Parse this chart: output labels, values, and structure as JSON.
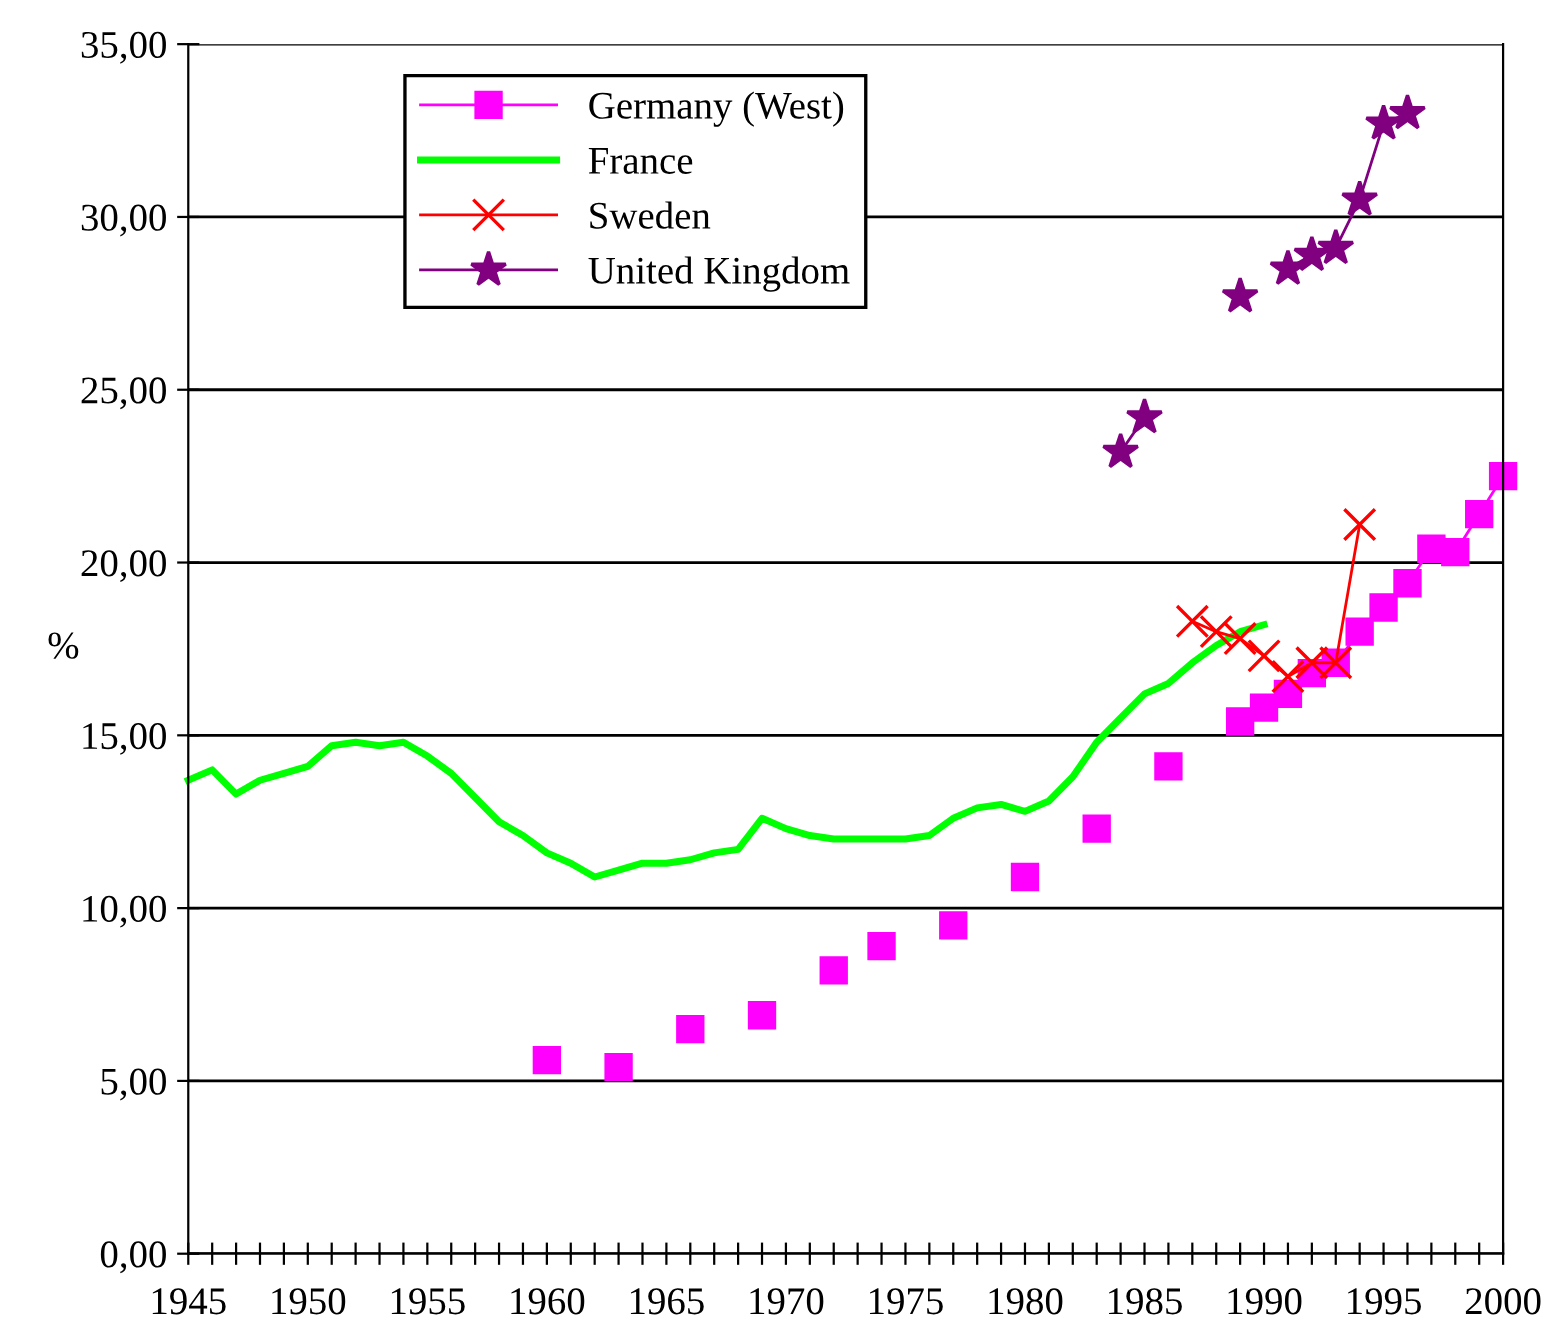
{
  "chart_data": {
    "type": "line",
    "ylabel": "%",
    "xlim": [
      1945,
      2000
    ],
    "ylim": [
      0,
      35
    ],
    "xticks": [
      1945,
      {
        "value": 1946,
        "label": null
      },
      {
        "value": 1947,
        "label": null
      },
      {
        "value": 1948,
        "label": null
      },
      {
        "value": 1949,
        "label": null
      },
      1950,
      {
        "value": 1951,
        "label": null
      },
      {
        "value": 1952,
        "label": null
      },
      {
        "value": 1953,
        "label": null
      },
      {
        "value": 1954,
        "label": null
      },
      1955,
      {
        "value": 1956,
        "label": null
      },
      {
        "value": 1957,
        "label": null
      },
      {
        "value": 1958,
        "label": null
      },
      {
        "value": 1959,
        "label": null
      },
      1960,
      {
        "value": 1961,
        "label": null
      },
      {
        "value": 1962,
        "label": null
      },
      {
        "value": 1963,
        "label": null
      },
      {
        "value": 1964,
        "label": null
      },
      1965,
      {
        "value": 1966,
        "label": null
      },
      {
        "value": 1967,
        "label": null
      },
      {
        "value": 1968,
        "label": null
      },
      {
        "value": 1969,
        "label": null
      },
      1970,
      {
        "value": 1971,
        "label": null
      },
      {
        "value": 1972,
        "label": null
      },
      {
        "value": 1973,
        "label": null
      },
      {
        "value": 1974,
        "label": null
      },
      1975,
      {
        "value": 1976,
        "label": null
      },
      {
        "value": 1977,
        "label": null
      },
      {
        "value": 1978,
        "label": null
      },
      {
        "value": 1979,
        "label": null
      },
      1980,
      {
        "value": 1981,
        "label": null
      },
      {
        "value": 1982,
        "label": null
      },
      {
        "value": 1983,
        "label": null
      },
      {
        "value": 1984,
        "label": null
      },
      1985,
      {
        "value": 1986,
        "label": null
      },
      {
        "value": 1987,
        "label": null
      },
      {
        "value": 1988,
        "label": null
      },
      {
        "value": 1989,
        "label": null
      },
      1990,
      {
        "value": 1991,
        "label": null
      },
      {
        "value": 1992,
        "label": null
      },
      {
        "value": 1993,
        "label": null
      },
      {
        "value": 1994,
        "label": null
      },
      1995,
      {
        "value": 1996,
        "label": null
      },
      {
        "value": 1997,
        "label": null
      },
      {
        "value": 1998,
        "label": null
      },
      {
        "value": 1999,
        "label": null
      },
      2000
    ],
    "yticks": [
      {
        "value": 0,
        "label": "0,00"
      },
      {
        "value": 5,
        "label": "5,00"
      },
      {
        "value": 10,
        "label": "10,00"
      },
      {
        "value": 15,
        "label": "15,00"
      },
      {
        "value": 20,
        "label": "20,00"
      },
      {
        "value": 25,
        "label": "25,00"
      },
      {
        "value": 30,
        "label": "30,00"
      },
      {
        "value": 35,
        "label": "35,00"
      }
    ],
    "grid": "y",
    "legend": "top left",
    "series": [
      {
        "name": "Germany (West)",
        "color": "#ff00ff",
        "marker": "square",
        "x": [
          1960,
          1961,
          1962,
          1963,
          1964,
          1965,
          1966,
          1967,
          1968,
          1969,
          1970,
          1971,
          1972,
          1973,
          1974,
          1975,
          1976,
          1977,
          1978,
          1979,
          1980,
          1981,
          1982,
          1983,
          1984,
          1985,
          1986,
          1987,
          1988,
          1989,
          1990,
          1991,
          1992,
          1993,
          1994,
          1995,
          1996,
          1997,
          1998,
          1999,
          2000
        ],
        "values": [
          5.6,
          null,
          null,
          5.4,
          null,
          null,
          6.5,
          null,
          null,
          6.9,
          null,
          null,
          8.2,
          null,
          8.9,
          null,
          null,
          9.5,
          null,
          null,
          10.9,
          null,
          null,
          12.3,
          null,
          null,
          14.1,
          null,
          null,
          15.4,
          15.8,
          16.2,
          16.8,
          17.1,
          18.0,
          18.7,
          19.4,
          20.4,
          20.3,
          21.4,
          22.5
        ]
      },
      {
        "name": "France",
        "color": "#00ff00",
        "marker": "none",
        "x": [
          1945,
          1946,
          1947,
          1948,
          1949,
          1950,
          1951,
          1952,
          1953,
          1954,
          1955,
          1956,
          1957,
          1958,
          1959,
          1960,
          1961,
          1962,
          1963,
          1964,
          1965,
          1966,
          1967,
          1968,
          1969,
          1970,
          1971,
          1972,
          1973,
          1974,
          1975,
          1976,
          1977,
          1978,
          1979,
          1980,
          1981,
          1982,
          1983,
          1984,
          1985,
          1986,
          1987,
          1988,
          1989,
          1990
        ],
        "values": [
          13.7,
          14.0,
          13.3,
          13.7,
          13.9,
          14.1,
          14.7,
          14.8,
          14.7,
          14.8,
          14.4,
          13.9,
          13.2,
          12.5,
          12.1,
          11.6,
          11.3,
          10.9,
          11.1,
          11.3,
          11.3,
          11.4,
          11.6,
          11.7,
          12.6,
          12.3,
          12.1,
          12.0,
          12.0,
          12.0,
          12.0,
          12.1,
          12.6,
          12.9,
          13.0,
          12.8,
          13.1,
          13.8,
          14.8,
          15.5,
          16.2,
          16.5,
          17.1,
          17.6,
          18.0,
          18.2
        ]
      },
      {
        "name": "Sweden",
        "color": "#ff0000",
        "marker": "cross",
        "x": [
          1987,
          1988,
          1989,
          1990,
          1991,
          1992,
          1993,
          1994
        ],
        "values": [
          18.3,
          18.0,
          17.8,
          17.3,
          16.7,
          17.1,
          17.1,
          21.1
        ]
      },
      {
        "name": "United Kingdom",
        "color": "#800080",
        "marker": "star",
        "x": [
          1984,
          1985,
          1986,
          1987,
          1988,
          1989,
          1990,
          1991,
          1992,
          1993,
          1994,
          1995,
          1996
        ],
        "values": [
          23.2,
          24.2,
          null,
          null,
          null,
          27.7,
          null,
          28.5,
          28.9,
          29.1,
          30.5,
          32.7,
          33.0
        ]
      }
    ]
  }
}
